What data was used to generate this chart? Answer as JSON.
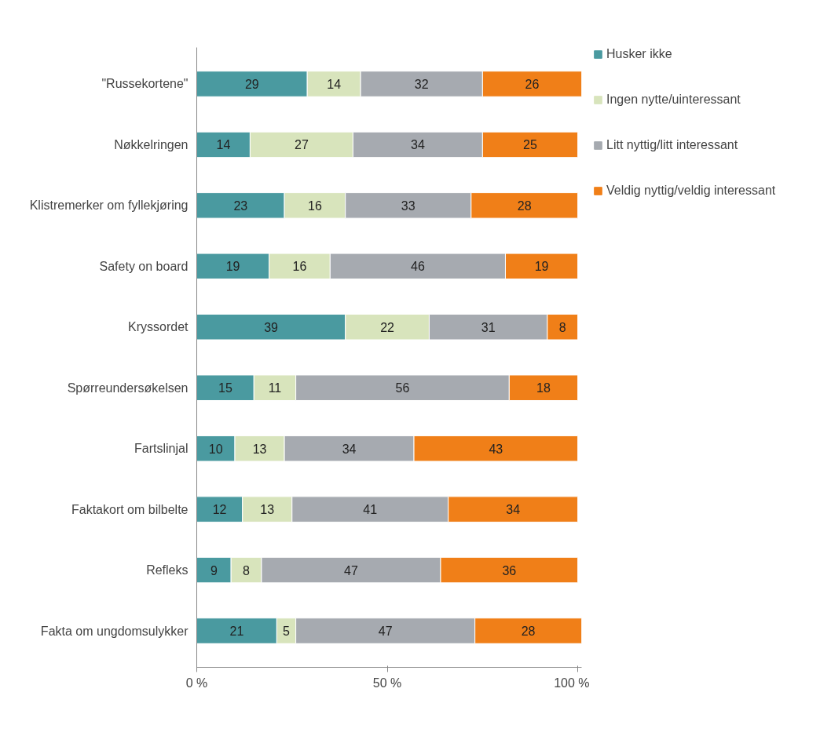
{
  "chart_data": {
    "type": "bar",
    "orientation": "horizontal",
    "stacked": true,
    "data_labels": true,
    "grid": false,
    "legend": "right",
    "categories": [
      "\"Russekortene\"",
      "Nøkkelringen",
      "Klistremerker om fyllekjøring",
      "Safety on board",
      "Kryssordet",
      "Spørreundersøkelsen",
      "Fartslinjal",
      "Faktakort om bilbelte",
      "Refleks",
      "Fakta om ungdomsulykker"
    ],
    "xlim": [
      0,
      101
    ],
    "xticks": [
      {
        "value": 0,
        "label": "0 %"
      },
      {
        "value": 50,
        "label": "50 %"
      },
      {
        "value": 100,
        "label": "100 %"
      }
    ],
    "series": [
      {
        "name": "Husker ikke",
        "color": "#4a9aa0",
        "values": [
          29,
          14,
          23,
          19,
          39,
          15,
          10,
          12,
          9,
          21
        ]
      },
      {
        "name": "Ingen nytte/uinteressant",
        "color": "#d8e4bc",
        "values": [
          14,
          27,
          16,
          16,
          22,
          11,
          13,
          13,
          8,
          5
        ]
      },
      {
        "name": "Litt nyttig/litt interessant",
        "color": "#a6aab0",
        "values": [
          32,
          34,
          33,
          46,
          31,
          56,
          34,
          41,
          47,
          47
        ]
      },
      {
        "name": "Veldig nyttig/veldig interessant",
        "color": "#f07f18",
        "values": [
          26,
          25,
          28,
          19,
          8,
          18,
          43,
          34,
          36,
          28
        ]
      }
    ]
  }
}
